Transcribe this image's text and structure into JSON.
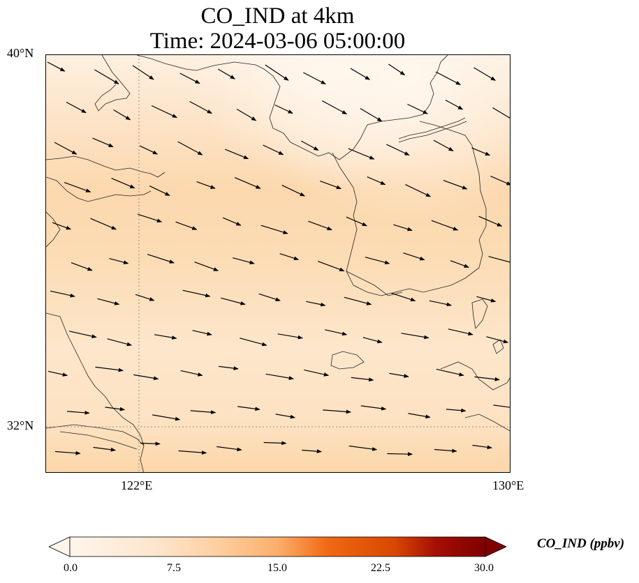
{
  "title": {
    "line1": "CO_IND at 4km",
    "line2": "Time: 2024-03-06 05:00:00"
  },
  "axes": {
    "lat_ticks": [
      "40°N",
      "32°N"
    ],
    "lon_ticks": [
      "122°E",
      "130°E"
    ]
  },
  "colorbar": {
    "label": "CO_IND (ppbv)",
    "ticks": [
      "0.0",
      "7.5",
      "15.0",
      "22.5",
      "30.0"
    ],
    "min": 0,
    "max": 30,
    "extend": "both",
    "colormap": [
      "#fff5eb",
      "#fdd0a2",
      "#fdae6b",
      "#fd8d3c",
      "#e6550d",
      "#a63603",
      "#7f0000"
    ]
  },
  "map": {
    "extent": {
      "lon_min": 120,
      "lon_max": 130,
      "lat_min": 31,
      "lat_max": 40
    },
    "gridlines": [
      {
        "lon": 122
      },
      {
        "lat": 32
      }
    ],
    "wind_direction": "mostly west-northwest to east-southeast",
    "field_colors": {
      "low": "#fff5eb",
      "high": "#fdd0a2"
    }
  }
}
